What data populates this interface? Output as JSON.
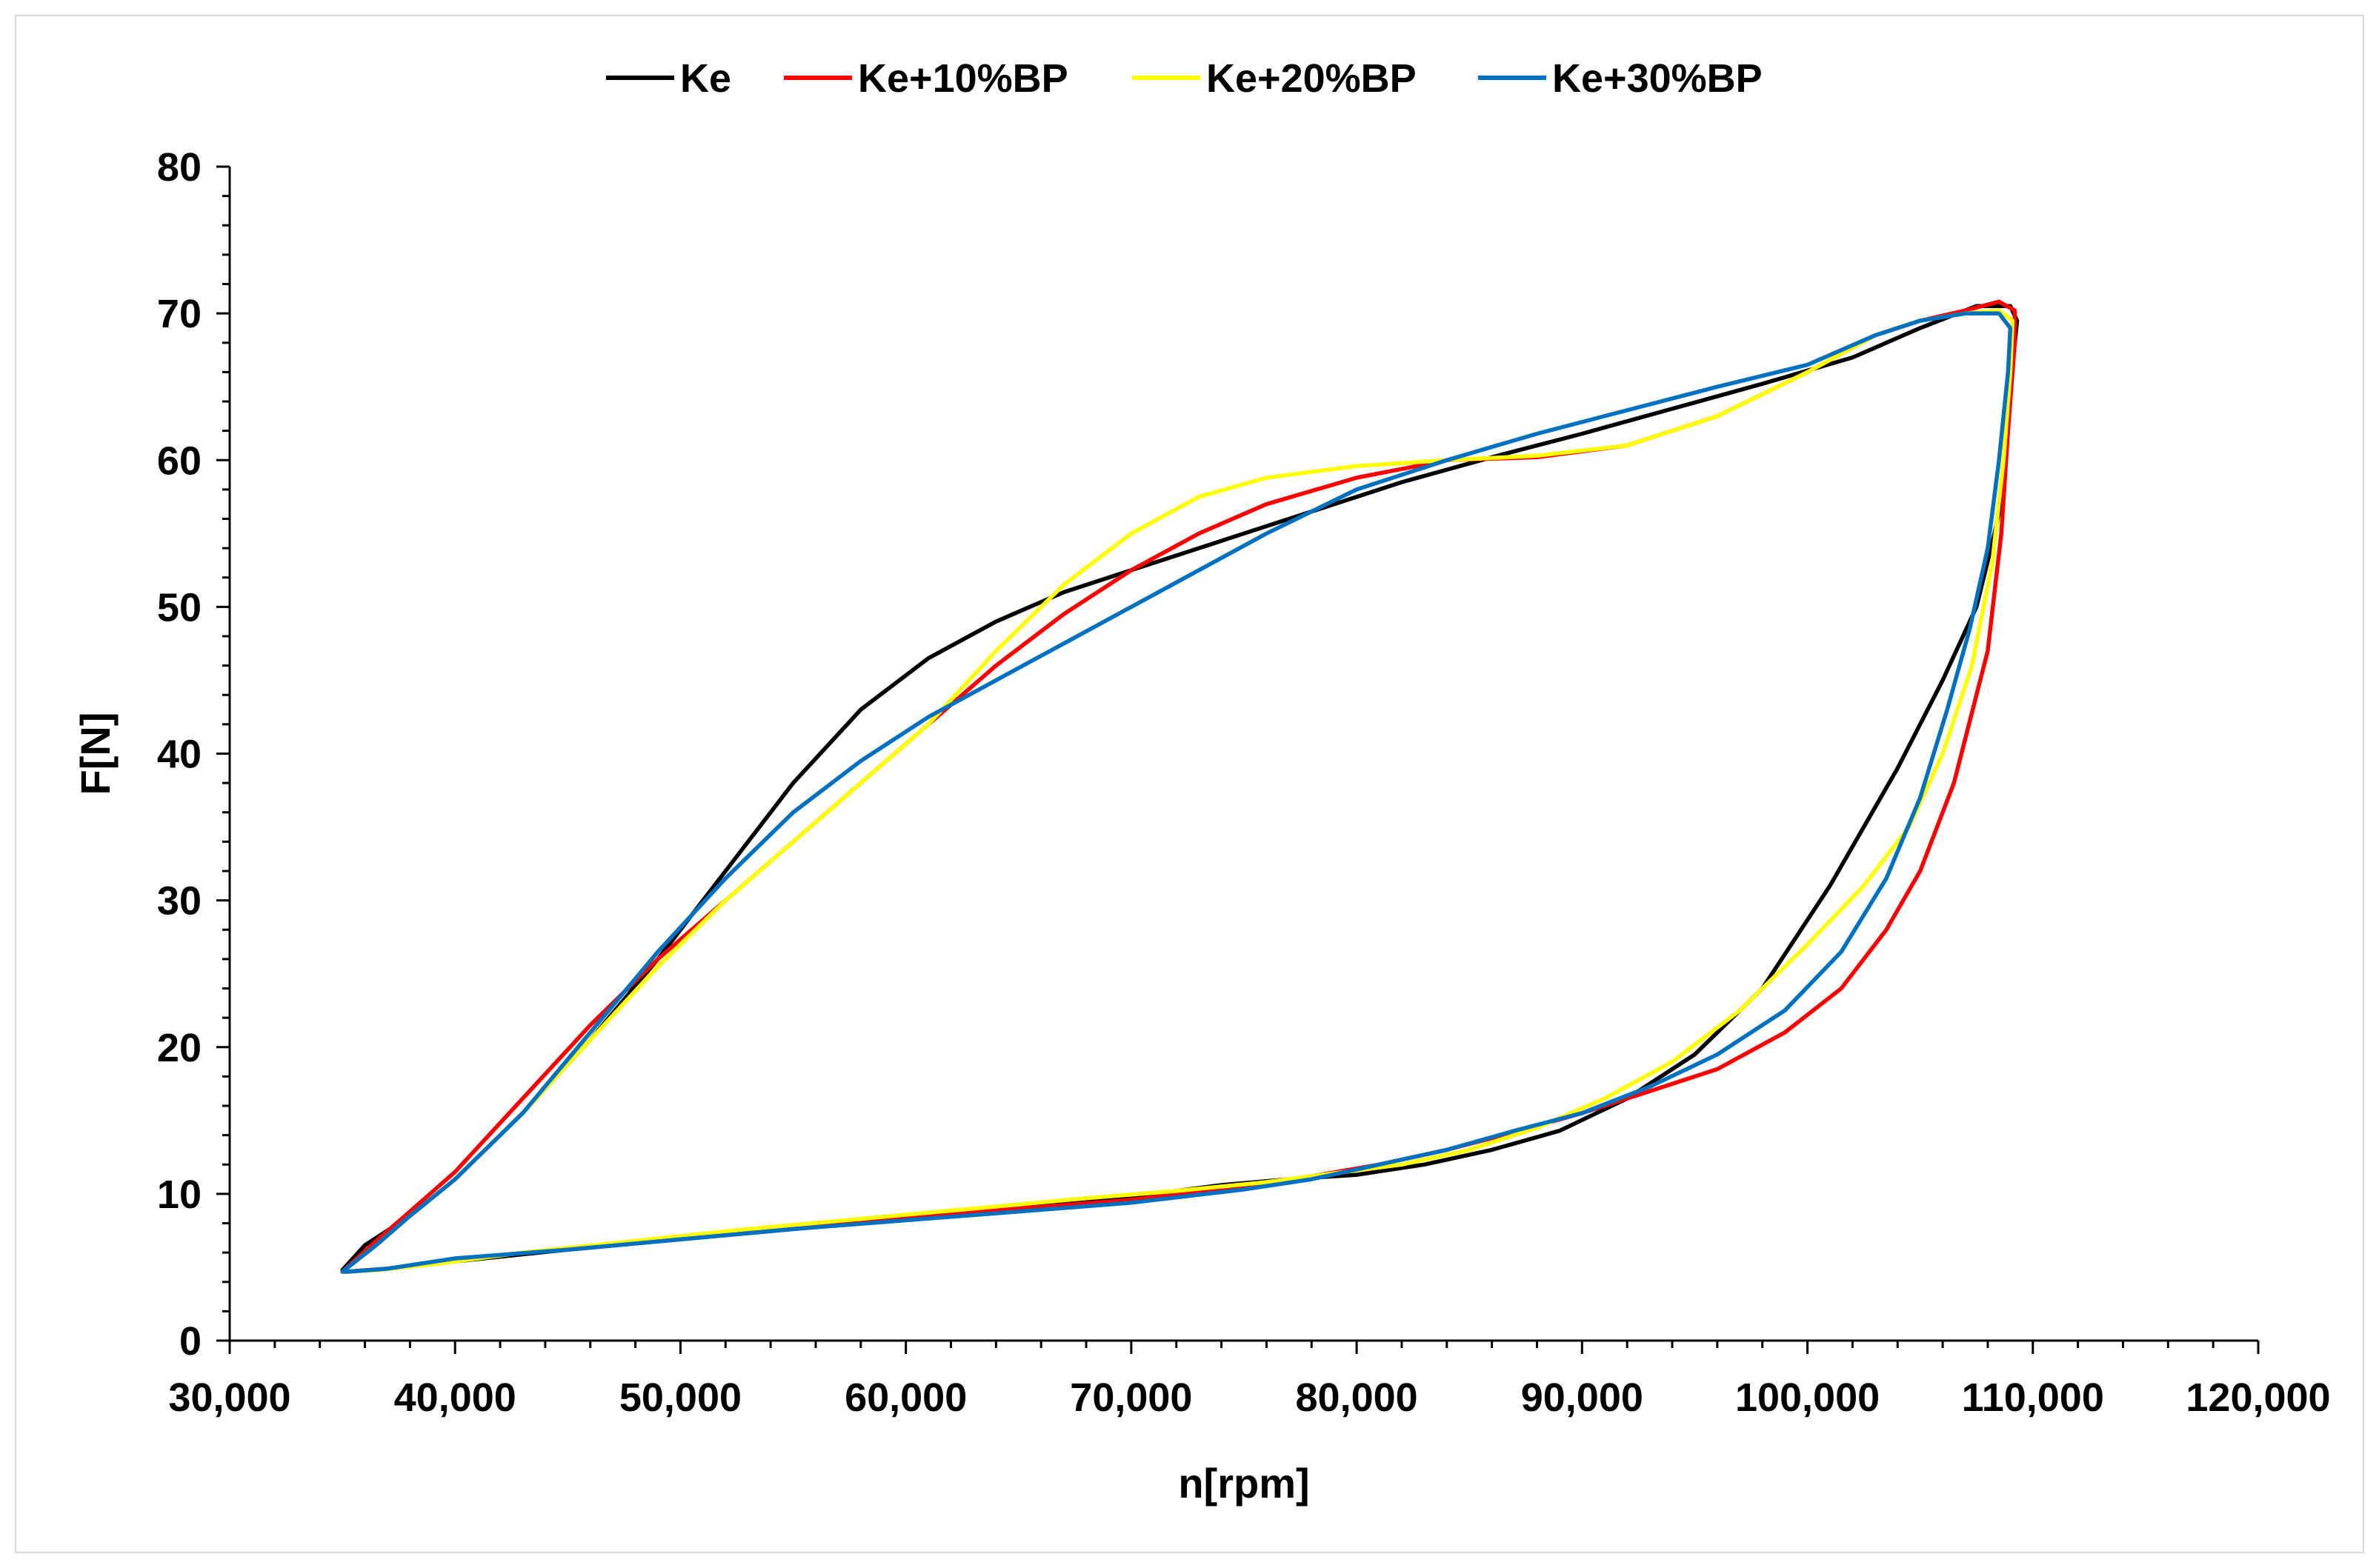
{
  "chart_data": {
    "type": "line",
    "xlabel": "n[rpm]",
    "ylabel": "F[N]",
    "xlim": [
      30000,
      120000
    ],
    "ylim": [
      0,
      80
    ],
    "x_ticks": [
      "30,000",
      "40,000",
      "50,000",
      "60,000",
      "70,000",
      "80,000",
      "90,000",
      "100,000",
      "110,000",
      "120,000"
    ],
    "y_ticks": [
      "0",
      "10",
      "20",
      "30",
      "40",
      "50",
      "60",
      "70",
      "80"
    ],
    "x_tick_values": [
      30000,
      40000,
      50000,
      60000,
      70000,
      80000,
      90000,
      100000,
      110000,
      120000
    ],
    "y_tick_values": [
      0,
      10,
      20,
      30,
      40,
      50,
      60,
      70,
      80
    ],
    "grid": false,
    "legend_position": "top",
    "series": [
      {
        "name": "Ke",
        "color": "#000000",
        "x": [
          35000,
          36000,
          38000,
          40000,
          43000,
          46000,
          49000,
          52000,
          55000,
          58000,
          61000,
          64000,
          67000,
          70000,
          74000,
          78000,
          82000,
          86000,
          90000,
          94000,
          98000,
          102000,
          105000,
          107500,
          109000,
          109300,
          109000,
          108700,
          108300,
          107500,
          106000,
          104000,
          101000,
          98000,
          95000,
          92000,
          89000,
          86000,
          83000,
          80000,
          77000,
          74000,
          70000,
          65000,
          60000,
          55000,
          50000,
          45000,
          40000,
          37000,
          35200,
          35000
        ],
        "y": [
          4.8,
          6.5,
          8.5,
          11.0,
          15.5,
          20.5,
          26.0,
          32.0,
          38.0,
          43.0,
          46.5,
          49.0,
          51.0,
          52.5,
          54.5,
          56.5,
          58.5,
          60.2,
          61.8,
          63.5,
          65.2,
          67.0,
          69.0,
          70.5,
          70.5,
          69.5,
          65.0,
          58.0,
          55.0,
          50.0,
          45.0,
          39.0,
          31.0,
          24.0,
          19.5,
          16.5,
          14.3,
          13.0,
          12.0,
          11.3,
          11.0,
          10.6,
          9.8,
          9.0,
          8.3,
          7.6,
          6.9,
          6.2,
          5.4,
          4.9,
          4.7,
          4.8
        ]
      },
      {
        "name": "Ke+10%BP",
        "color": "#ff0000",
        "x": [
          35000,
          36500,
          38000,
          40000,
          43000,
          46000,
          49000,
          52000,
          55000,
          58000,
          61000,
          64000,
          67000,
          70000,
          73000,
          76000,
          80000,
          84000,
          88000,
          92000,
          96000,
          100000,
          103000,
          105000,
          107000,
          108500,
          109200,
          109200,
          108900,
          108600,
          108000,
          106500,
          105000,
          103500,
          101500,
          99000,
          96000,
          93000,
          90000,
          87000,
          84000,
          81000,
          78000,
          75000,
          70000,
          65000,
          60000,
          55000,
          50000,
          45000,
          40000,
          37000,
          35300,
          35000
        ],
        "y": [
          4.7,
          6.8,
          8.8,
          11.5,
          16.5,
          21.5,
          26.0,
          30.0,
          34.0,
          38.0,
          42.0,
          46.0,
          49.5,
          52.5,
          55.0,
          57.0,
          58.8,
          60.0,
          60.2,
          61.0,
          63.0,
          66.0,
          68.5,
          69.5,
          70.2,
          70.8,
          70.2,
          68.0,
          62.0,
          55.0,
          47.0,
          38.0,
          32.0,
          28.0,
          24.0,
          21.0,
          18.5,
          17.0,
          15.5,
          14.2,
          13.0,
          12.0,
          11.2,
          10.5,
          9.6,
          9.0,
          8.4,
          7.8,
          7.0,
          6.3,
          5.5,
          4.9,
          4.7,
          4.7
        ]
      },
      {
        "name": "Ke+20%BP",
        "color": "#ffff00",
        "x": [
          35000,
          36500,
          38000,
          40000,
          43000,
          46000,
          49000,
          52000,
          55000,
          58000,
          61000,
          64000,
          67000,
          70000,
          73000,
          76000,
          80000,
          84000,
          88000,
          92000,
          96000,
          100000,
          103000,
          105000,
          107000,
          108500,
          109100,
          109000,
          108700,
          108200,
          107300,
          106000,
          104500,
          102500,
          100000,
          97000,
          94000,
          91000,
          88000,
          85000,
          82000,
          79000,
          76000,
          72000,
          68000,
          63000,
          58000,
          53000,
          48000,
          43000,
          39000,
          36500,
          35300,
          35000
        ],
        "y": [
          4.7,
          6.5,
          8.5,
          11.0,
          15.5,
          20.5,
          25.5,
          30.0,
          34.0,
          38.0,
          42.0,
          47.0,
          51.5,
          55.0,
          57.5,
          58.8,
          59.6,
          60.0,
          60.3,
          61.0,
          63.0,
          66.0,
          68.5,
          69.5,
          70.0,
          70.2,
          69.5,
          66.0,
          60.0,
          53.0,
          46.0,
          40.0,
          35.0,
          31.0,
          27.0,
          22.5,
          19.0,
          16.5,
          14.5,
          13.0,
          12.0,
          11.4,
          10.8,
          10.2,
          9.7,
          9.0,
          8.3,
          7.6,
          6.8,
          6.0,
          5.2,
          4.8,
          4.7,
          4.7
        ]
      },
      {
        "name": "Ke+30%BP",
        "color": "#0070c0",
        "x": [
          35000,
          36500,
          38000,
          40000,
          43000,
          46000,
          49000,
          52000,
          55000,
          58000,
          61000,
          64000,
          67000,
          70000,
          73000,
          76000,
          80000,
          84000,
          88000,
          92000,
          96000,
          100000,
          103000,
          105000,
          107000,
          108500,
          109000,
          108900,
          108500,
          108000,
          107200,
          106200,
          105000,
          103500,
          101500,
          99000,
          96000,
          93000,
          90000,
          87000,
          84000,
          81000,
          78000,
          75000,
          70000,
          65000,
          60000,
          55000,
          50000,
          45000,
          40000,
          37000,
          35300,
          35000
        ],
        "y": [
          4.7,
          6.5,
          8.5,
          11.0,
          15.5,
          21.0,
          26.5,
          31.5,
          36.0,
          39.5,
          42.5,
          45.0,
          47.5,
          50.0,
          52.5,
          55.0,
          58.0,
          60.0,
          61.8,
          63.4,
          65.0,
          66.5,
          68.5,
          69.5,
          70.0,
          70.0,
          69.0,
          66.0,
          60.0,
          54.0,
          48.5,
          43.0,
          37.0,
          31.5,
          26.5,
          22.5,
          19.5,
          17.3,
          15.5,
          14.3,
          13.0,
          12.0,
          11.0,
          10.3,
          9.4,
          8.8,
          8.2,
          7.6,
          6.9,
          6.2,
          5.6,
          4.9,
          4.7,
          4.7
        ]
      }
    ]
  }
}
